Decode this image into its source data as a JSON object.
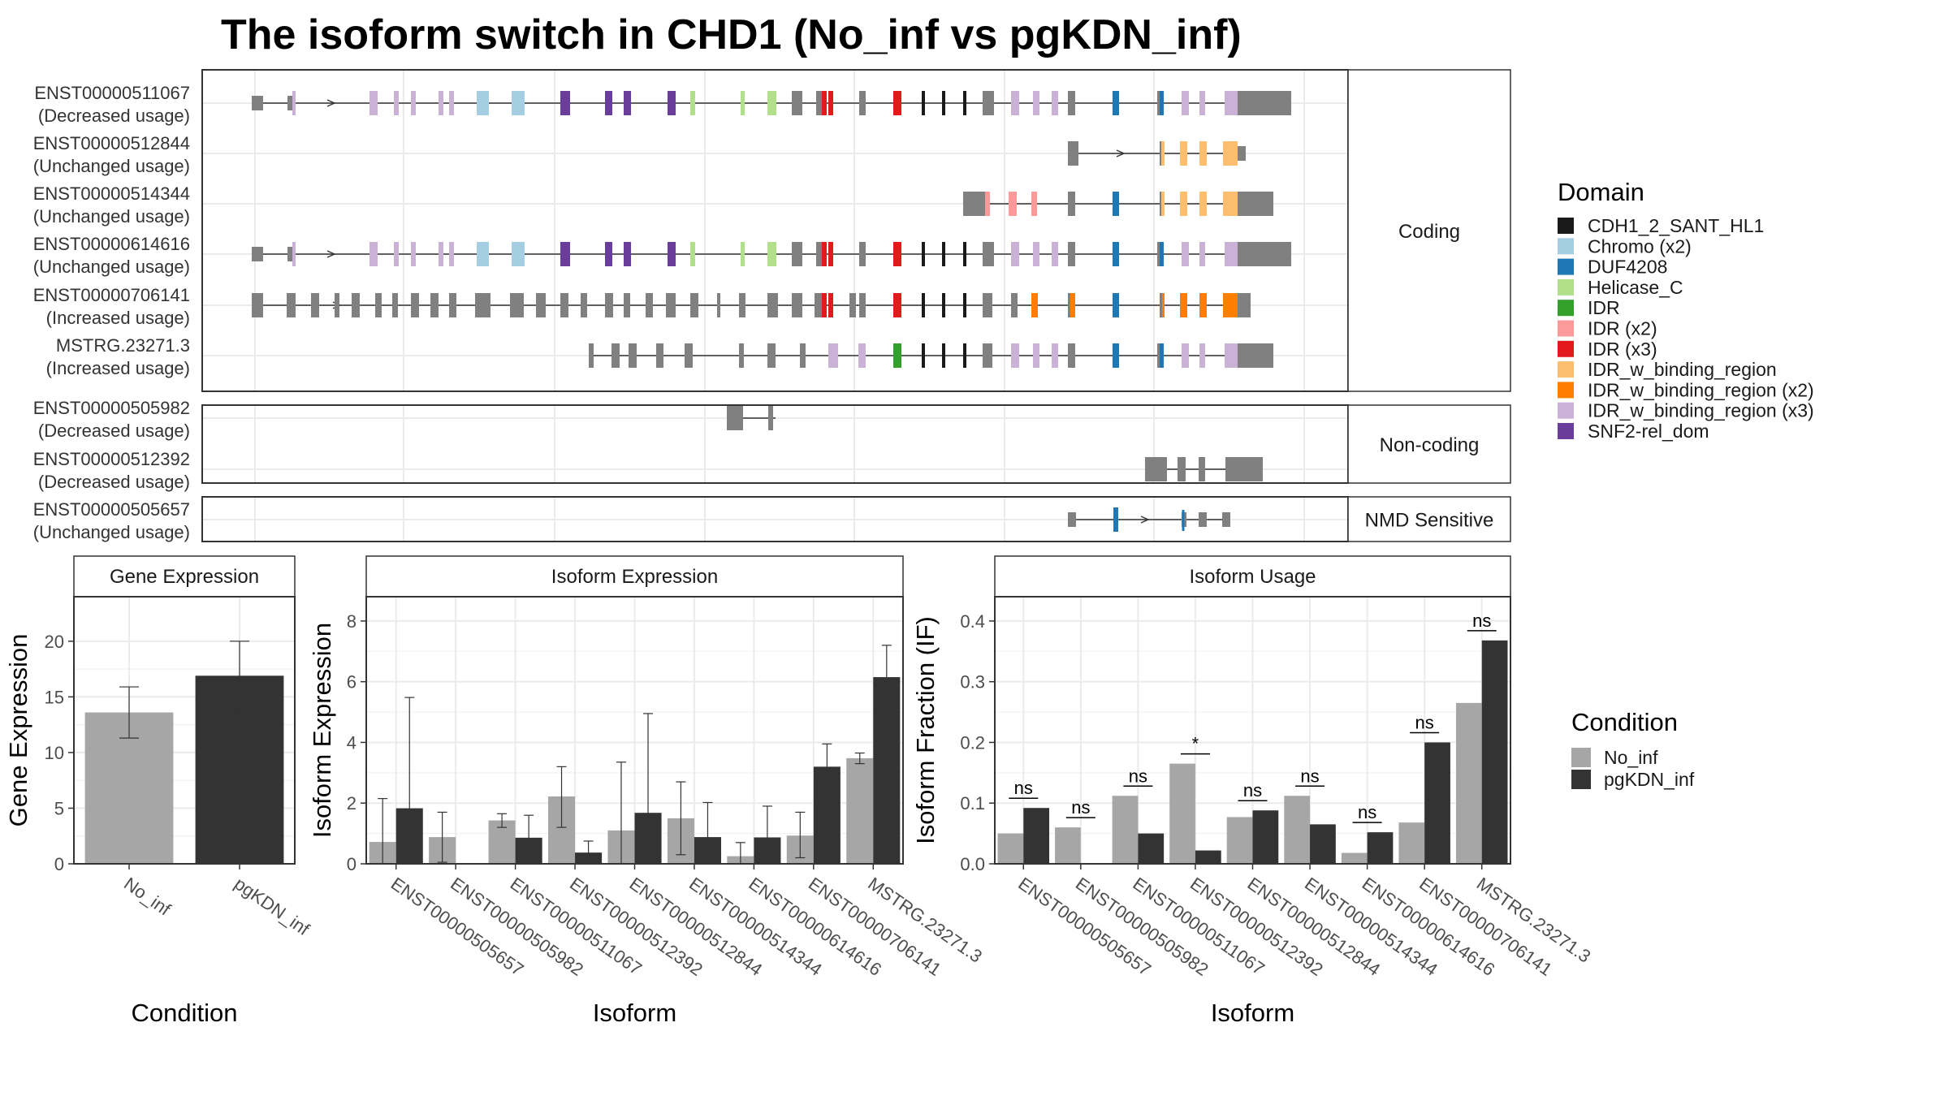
{
  "title": "The isoform switch in CHD1 (No_inf vs pgKDN_inf)",
  "colors": {
    "no_inf": "#a6a6a6",
    "pgkdn_inf": "#333333",
    "exon_default": "#808080"
  },
  "chart_data": [
    {
      "type": "gene_structure",
      "panels": [
        {
          "label": "Coding",
          "isoforms": [
            {
              "name": "ENST00000511067",
              "status": "(Decreased usage)"
            },
            {
              "name": "ENST00000512844",
              "status": "(Unchanged usage)"
            },
            {
              "name": "ENST00000514344",
              "status": "(Unchanged usage)"
            },
            {
              "name": "ENST00000614616",
              "status": "(Unchanged usage)"
            },
            {
              "name": "ENST00000706141",
              "status": "(Increased usage)"
            },
            {
              "name": "MSTRG.23271.3",
              "status": "(Increased usage)"
            }
          ]
        },
        {
          "label": "Non-coding",
          "isoforms": [
            {
              "name": "ENST00000505982",
              "status": "(Decreased usage)"
            },
            {
              "name": "ENST00000512392",
              "status": "(Decreased usage)"
            }
          ]
        },
        {
          "label": "NMD Sensitive",
          "isoforms": [
            {
              "name": "ENST00000505657",
              "status": "(Unchanged usage)"
            }
          ]
        }
      ],
      "legend": {
        "title": "Domain",
        "items": [
          {
            "label": "CDH1_2_SANT_HL1",
            "color": "#1a1a1a"
          },
          {
            "label": "Chromo (x2)",
            "color": "#a6cee3"
          },
          {
            "label": "DUF4208",
            "color": "#1f78b4"
          },
          {
            "label": "Helicase_C",
            "color": "#b2df8a"
          },
          {
            "label": "IDR",
            "color": "#33a02c"
          },
          {
            "label": "IDR (x2)",
            "color": "#fb9a99"
          },
          {
            "label": "IDR (x3)",
            "color": "#e31a1c"
          },
          {
            "label": "IDR_w_binding_region",
            "color": "#fdbf6f"
          },
          {
            "label": "IDR_w_binding_region (x2)",
            "color": "#ff7f00"
          },
          {
            "label": "IDR_w_binding_region (x3)",
            "color": "#cab2d6"
          },
          {
            "label": "SNF2-rel_dom",
            "color": "#6a3d9a"
          }
        ]
      }
    },
    {
      "type": "bar",
      "title": "Gene Expression",
      "xlabel": "Condition",
      "ylabel": "Gene Expression",
      "categories": [
        "No_inf",
        "pgKDN_inf"
      ],
      "values": [
        13.6,
        16.9
      ],
      "error_low": [
        11.3,
        13.8
      ],
      "error_high": [
        15.9,
        20.0
      ],
      "ylim": [
        0,
        24
      ],
      "yticks": [
        0,
        5,
        10,
        15,
        20
      ]
    },
    {
      "type": "bar",
      "title": "Isoform Expression",
      "xlabel": "Isoform",
      "ylabel": "Isoform Expression",
      "categories": [
        "ENST00000505657",
        "ENST00000505982",
        "ENST00000511067",
        "ENST00000512392",
        "ENST00000512844",
        "ENST00000514344",
        "ENST00000614616",
        "ENST00000706141",
        "MSTRG.23271.3"
      ],
      "series": [
        {
          "name": "No_inf",
          "values": [
            0.72,
            0.88,
            1.43,
            2.22,
            1.1,
            1.5,
            0.25,
            0.93,
            3.48
          ],
          "error_low": [
            0.0,
            0.05,
            1.2,
            1.2,
            0.0,
            0.3,
            0.0,
            0.2,
            3.3
          ],
          "error_high": [
            2.15,
            1.7,
            1.65,
            3.2,
            3.35,
            2.7,
            0.7,
            1.7,
            3.65
          ]
        },
        {
          "name": "pgKDN_inf",
          "values": [
            1.83,
            0.0,
            0.86,
            0.37,
            1.68,
            0.88,
            0.87,
            3.2,
            6.15
          ],
          "error_low": [
            0.0,
            0.0,
            0.1,
            0.0,
            0.0,
            0.0,
            0.0,
            2.5,
            5.1
          ],
          "error_high": [
            5.48,
            0.0,
            1.6,
            0.75,
            4.95,
            2.02,
            1.9,
            3.95,
            7.2
          ]
        }
      ],
      "ylim": [
        0,
        8.8
      ],
      "yticks": [
        0,
        2,
        4,
        6,
        8
      ]
    },
    {
      "type": "bar",
      "title": "Isoform Usage",
      "xlabel": "Isoform",
      "ylabel": "Isoform Fraction (IF)",
      "categories": [
        "ENST00000505657",
        "ENST00000505982",
        "ENST00000511067",
        "ENST00000512392",
        "ENST00000512844",
        "ENST00000514344",
        "ENST00000614616",
        "ENST00000706141",
        "MSTRG.23271.3"
      ],
      "series": [
        {
          "name": "No_inf",
          "values": [
            0.05,
            0.06,
            0.112,
            0.165,
            0.077,
            0.112,
            0.018,
            0.068,
            0.265
          ]
        },
        {
          "name": "pgKDN_inf",
          "values": [
            0.092,
            0.0,
            0.05,
            0.022,
            0.088,
            0.065,
            0.052,
            0.2,
            0.368
          ]
        }
      ],
      "significance": [
        "ns",
        "ns",
        "ns",
        "*",
        "ns",
        "ns",
        "ns",
        "ns",
        "ns"
      ],
      "ylim": [
        0,
        0.44
      ],
      "yticks": [
        "0.0",
        "0.1",
        "0.2",
        "0.3",
        "0.4"
      ]
    }
  ],
  "condition_legend": {
    "title": "Condition",
    "items": [
      "No_inf",
      "pgKDN_inf"
    ]
  }
}
